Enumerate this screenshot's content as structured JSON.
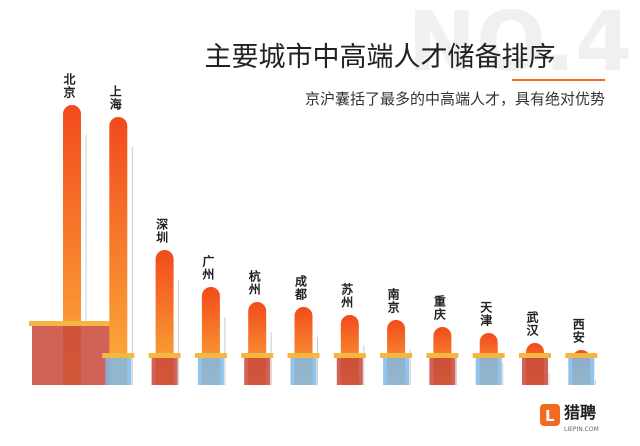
{
  "chart_data": {
    "type": "bar",
    "title": "主要城市中高端人才储备排序",
    "subtitle": "京沪囊括了最多的中高端人才，具有绝对优势",
    "watermark": "NO.4",
    "categories": [
      "北京",
      "上海",
      "深圳",
      "广州",
      "杭州",
      "成都",
      "苏州",
      "南京",
      "重庆",
      "天津",
      "武汉",
      "西安"
    ],
    "values": [
      280,
      268,
      135,
      98,
      83,
      78,
      70,
      65,
      58,
      52,
      42,
      35
    ],
    "color": "#f26a21",
    "logo": {
      "name": "猎聘",
      "site": "LIEPIN.COM"
    }
  }
}
